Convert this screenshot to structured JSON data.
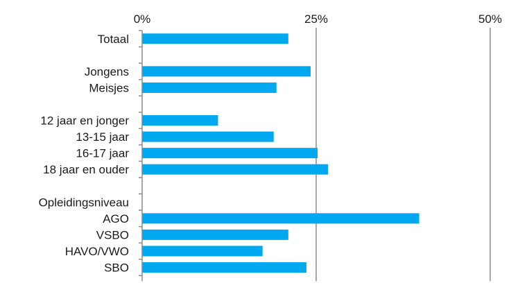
{
  "chart_data": {
    "type": "bar",
    "orientation": "horizontal",
    "title": "",
    "xlabel": "",
    "ylabel": "",
    "xlim": [
      0,
      50
    ],
    "x_ticks": [
      0,
      25,
      50
    ],
    "x_tick_labels": [
      "0%",
      "25%",
      "50%"
    ],
    "axis_position": "top",
    "grid": true,
    "legend": "none",
    "bar_color": "#00a8f0",
    "categories": [
      "Totaal",
      "",
      "Jongens",
      "Meisjes",
      "",
      "12 jaar en jonger",
      "13-15 jaar",
      "16-17 jaar",
      "18 jaar en ouder",
      "",
      "Opleidingsniveau",
      "AGO",
      "VSBO",
      "HAVO/VWO",
      "SBO"
    ],
    "values": [
      21,
      null,
      24.2,
      19.3,
      null,
      10.9,
      18.9,
      25.2,
      26.7,
      null,
      null,
      39.8,
      21,
      17.3,
      23.6
    ]
  }
}
